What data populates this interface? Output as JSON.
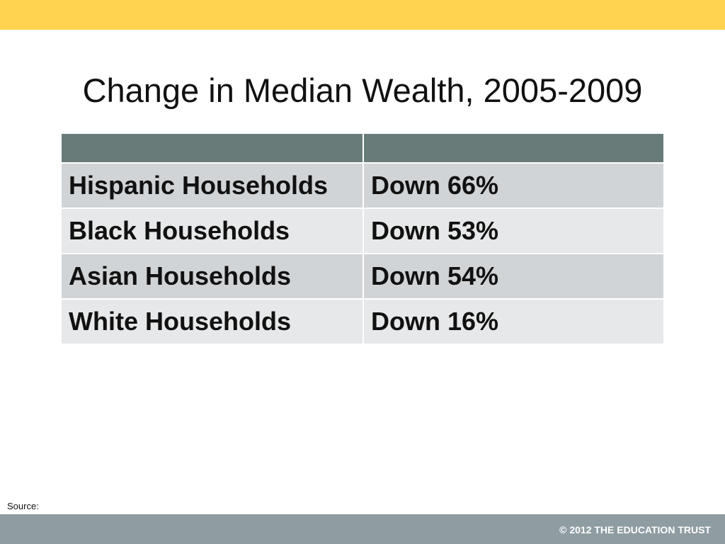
{
  "slide": {
    "title": "Change in Median Wealth, 2005-2009",
    "source_label": "Source:",
    "copyright": "© 2012 THE EDUCATION TRUST"
  },
  "table": {
    "headers": [
      "",
      ""
    ],
    "rows": [
      {
        "group": "Hispanic Households",
        "change": "Down 66%"
      },
      {
        "group": "Black Households",
        "change": "Down 53%"
      },
      {
        "group": "Asian Households",
        "change": "Down 54%"
      },
      {
        "group": "White Households",
        "change": "Down 16%"
      }
    ]
  },
  "colors": {
    "top_bar": "#ffd24f",
    "header_row": "#687b78",
    "row_odd": "#d1d4d6",
    "row_even": "#e7e8e9",
    "footer_bar": "#8f9ca2"
  }
}
